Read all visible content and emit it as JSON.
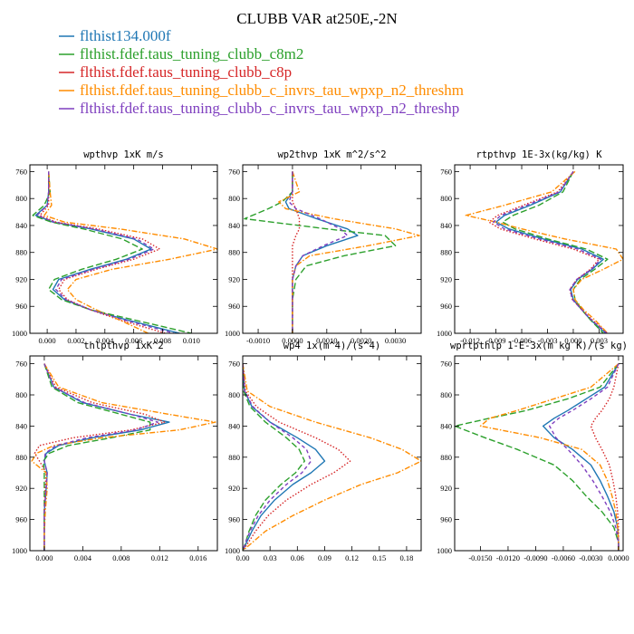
{
  "figure": {
    "title": "CLUBB VAR at250E,-2N",
    "legend": [
      {
        "label": "flthist134.000f",
        "color": "#1f77b4",
        "dash": "solid"
      },
      {
        "label": "flthist.fdef.taus_tuning_clubb_c8m2",
        "color": "#2ca02c",
        "dash": "longdash"
      },
      {
        "label": "flthist.fdef.taus_tuning_clubb_c8p",
        "color": "#d62728",
        "dash": "dotted"
      },
      {
        "label": "flthist.fdef.taus_tuning_clubb_c_invrs_tau_wpxp_n2_threshm",
        "color": "#ff8c00",
        "dash": "dashdot"
      },
      {
        "label": "flthist.fdef.taus_tuning_clubb_c_invrs_tau_wpxp_n2_threshp",
        "color": "#7f3fbf",
        "dash": "dash"
      }
    ]
  },
  "chart_data": [
    {
      "type": "line",
      "title": "wpthvp  1xK m/s",
      "xlim": [
        -0.0012,
        0.0118
      ],
      "ylim": [
        1000,
        750
      ],
      "xticks": [
        0.0,
        0.002,
        0.004,
        0.006,
        0.008,
        0.01
      ],
      "xtick_labels": [
        "0.000",
        "0.002",
        "0.004",
        "0.006",
        "0.008",
        "0.010"
      ],
      "yticks": [
        760,
        800,
        840,
        880,
        920,
        960,
        1000
      ],
      "y": [
        760,
        790,
        810,
        825,
        835,
        845,
        860,
        875,
        890,
        905,
        920,
        935,
        950,
        965,
        980,
        1000
      ],
      "series": [
        {
          "x": [
            0.0001,
            0.0001,
            0.0,
            -0.0008,
            0.0004,
            0.003,
            0.006,
            0.0072,
            0.0055,
            0.003,
            0.0008,
            0.0004,
            0.0012,
            0.003,
            0.0055,
            0.0092
          ]
        },
        {
          "x": [
            0.0001,
            0.0002,
            -0.0002,
            -0.001,
            0.0003,
            0.0025,
            0.0052,
            0.0066,
            0.0048,
            0.0024,
            0.0005,
            0.0001,
            0.001,
            0.003,
            0.006,
            0.01
          ]
        },
        {
          "x": [
            0.0001,
            0.0001,
            0.0001,
            -0.0005,
            0.0006,
            0.0035,
            0.0066,
            0.0078,
            0.006,
            0.0034,
            0.0012,
            0.0008,
            0.0014,
            0.003,
            0.005,
            0.0082
          ]
        },
        {
          "x": [
            0.0001,
            0.0002,
            0.0003,
            -0.0002,
            0.0012,
            0.005,
            0.0095,
            0.0118,
            0.0085,
            0.0045,
            0.002,
            0.0014,
            0.002,
            0.0034,
            0.005,
            0.007
          ]
        },
        {
          "x": [
            0.0001,
            0.0001,
            0.0,
            -0.0007,
            0.0005,
            0.0032,
            0.0062,
            0.0074,
            0.0057,
            0.0032,
            0.001,
            0.0006,
            0.0013,
            0.003,
            0.0053,
            0.0088
          ]
        }
      ]
    },
    {
      "type": "line",
      "title": "wp2thvp  1xK m^2/s^2",
      "xlim": [
        -0.00145,
        0.00375
      ],
      "ylim": [
        1000,
        750
      ],
      "xticks": [
        -0.001,
        0.0,
        0.001,
        0.002,
        0.003
      ],
      "xtick_labels": [
        "-0.0010",
        "0.0000",
        "0.0010",
        "0.0020",
        "0.0030"
      ],
      "yticks": [
        760,
        800,
        840,
        880,
        920,
        960,
        1000
      ],
      "y": [
        760,
        790,
        805,
        815,
        830,
        845,
        855,
        870,
        885,
        900,
        920,
        950,
        980,
        1000
      ],
      "series": [
        {
          "x": [
            0.0,
            0.0,
            -0.0002,
            -0.0001,
            0.0007,
            0.0016,
            0.0019,
            0.001,
            0.0003,
            0.0001,
            0.0,
            0.0,
            0.0,
            0.0
          ]
        },
        {
          "x": [
            0.0,
            0.0,
            -0.0003,
            -0.0007,
            -0.0014,
            0.001,
            0.0027,
            0.003,
            0.0015,
            0.0004,
            0.0001,
            0.0,
            0.0,
            0.0
          ]
        },
        {
          "x": [
            0.0,
            0.0,
            0.0,
            0.0001,
            0.0002,
            0.0002,
            0.0001,
            0.0,
            0.0,
            0.0,
            0.0,
            0.0,
            0.0,
            0.0
          ]
        },
        {
          "x": [
            0.0,
            0.0002,
            -0.0004,
            -0.0002,
            0.0012,
            0.003,
            0.0037,
            0.0022,
            0.0005,
            0.0001,
            0.0,
            0.0,
            0.0,
            0.0
          ]
        },
        {
          "x": [
            0.0,
            0.0,
            -0.0001,
            0.0001,
            0.0008,
            0.0014,
            0.0016,
            0.0009,
            0.0003,
            0.0001,
            0.0,
            0.0,
            0.0,
            0.0
          ]
        }
      ]
    },
    {
      "type": "line",
      "title": "rtpthvp  1E-3x(kg/kg) K",
      "xlim": [
        -0.0138,
        0.0058
      ],
      "ylim": [
        1000,
        750
      ],
      "xticks": [
        -0.012,
        -0.009,
        -0.006,
        -0.003,
        0.0,
        0.003
      ],
      "xtick_labels": [
        "-0.012",
        "-0.009",
        "-0.006",
        "-0.003",
        "0.000",
        "0.003"
      ],
      "yticks": [
        760,
        800,
        840,
        880,
        920,
        960,
        1000
      ],
      "y": [
        760,
        790,
        810,
        825,
        835,
        845,
        860,
        875,
        890,
        905,
        920,
        935,
        950,
        965,
        980,
        1000
      ],
      "series": [
        {
          "x": [
            0.0,
            -0.0015,
            -0.005,
            -0.008,
            -0.009,
            -0.0075,
            -0.0035,
            0.001,
            0.0035,
            0.0022,
            0.0005,
            -0.0003,
            0.0,
            0.001,
            0.002,
            0.0038
          ]
        },
        {
          "x": [
            0.0,
            -0.0012,
            -0.004,
            -0.007,
            -0.0082,
            -0.0068,
            -0.003,
            0.0015,
            0.004,
            0.0025,
            0.0008,
            0.0,
            0.0002,
            0.001,
            0.002,
            0.0035
          ]
        },
        {
          "x": [
            0.0,
            -0.0018,
            -0.0058,
            -0.0088,
            -0.0098,
            -0.0085,
            -0.0045,
            0.0,
            0.003,
            0.002,
            0.0004,
            -0.0004,
            -0.0001,
            0.001,
            0.0022,
            0.004
          ]
        },
        {
          "x": [
            0.0002,
            -0.0025,
            -0.008,
            -0.0125,
            -0.009,
            -0.006,
            -0.001,
            0.005,
            0.0058,
            0.0035,
            0.001,
            0.0,
            0.0002,
            0.0012,
            0.0025,
            0.004
          ]
        },
        {
          "x": [
            0.0,
            -0.0016,
            -0.0054,
            -0.0084,
            -0.0093,
            -0.008,
            -0.004,
            0.0005,
            0.0032,
            0.0021,
            0.0004,
            -0.0004,
            -0.0001,
            0.001,
            0.0021,
            0.0039
          ]
        }
      ]
    },
    {
      "type": "line",
      "title": "thlpthvp  1xK^2",
      "xlim": [
        -0.0015,
        0.018
      ],
      "ylim": [
        1000,
        750
      ],
      "xticks": [
        0.0,
        0.004,
        0.008,
        0.012,
        0.016
      ],
      "xtick_labels": [
        "0.000",
        "0.004",
        "0.008",
        "0.012",
        "0.016"
      ],
      "yticks": [
        760,
        800,
        840,
        880,
        920,
        960,
        1000
      ],
      "y": [
        760,
        790,
        810,
        825,
        835,
        845,
        855,
        865,
        875,
        885,
        900,
        920,
        950,
        980,
        1000
      ],
      "series": [
        {
          "x": [
            0.0,
            0.001,
            0.004,
            0.009,
            0.013,
            0.01,
            0.005,
            0.0015,
            0.0002,
            0.0,
            0.0003,
            0.0002,
            0.0,
            0.0,
            0.0
          ]
        },
        {
          "x": [
            0.0,
            0.0008,
            0.0035,
            0.008,
            0.011,
            0.011,
            0.007,
            0.0025,
            0.0005,
            -0.0001,
            0.0,
            0.0,
            0.0,
            0.0,
            0.0
          ]
        },
        {
          "x": [
            0.0,
            0.0012,
            0.005,
            0.0105,
            0.0125,
            0.009,
            0.003,
            -0.0005,
            -0.001,
            -0.0005,
            0.0002,
            0.0001,
            0.0,
            0.0,
            0.0
          ]
        },
        {
          "x": [
            0.0,
            0.0015,
            0.006,
            0.013,
            0.0178,
            0.014,
            0.006,
            0.001,
            -0.0008,
            -0.0013,
            0.0002,
            0.0003,
            0.0001,
            0.0,
            0.0
          ]
        },
        {
          "x": [
            0.0,
            0.001,
            0.0042,
            0.009,
            0.0118,
            0.0095,
            0.0045,
            0.0012,
            0.0001,
            0.0,
            0.0003,
            0.0002,
            0.0,
            0.0,
            0.0
          ]
        }
      ]
    },
    {
      "type": "line",
      "title": "wp4  1x(m^4)/(s^4)",
      "xlim": [
        0,
        0.196
      ],
      "ylim": [
        1000,
        750
      ],
      "xticks": [
        0.0,
        0.03,
        0.06,
        0.09,
        0.12,
        0.15,
        0.18
      ],
      "xtick_labels": [
        "0.00",
        "0.03",
        "0.06",
        "0.09",
        "0.12",
        "0.15",
        "0.18"
      ],
      "yticks": [
        760,
        800,
        840,
        880,
        920,
        960,
        1000
      ],
      "y": [
        760,
        795,
        815,
        835,
        855,
        870,
        885,
        900,
        915,
        935,
        955,
        975,
        990,
        1000
      ],
      "series": [
        {
          "x": [
            0.0,
            0.002,
            0.01,
            0.03,
            0.06,
            0.08,
            0.09,
            0.075,
            0.055,
            0.035,
            0.02,
            0.01,
            0.004,
            0.0
          ]
        },
        {
          "x": [
            0.0,
            0.001,
            0.008,
            0.025,
            0.048,
            0.062,
            0.068,
            0.058,
            0.042,
            0.025,
            0.014,
            0.007,
            0.003,
            0.0
          ]
        },
        {
          "x": [
            0.0,
            0.003,
            0.015,
            0.04,
            0.08,
            0.105,
            0.118,
            0.1,
            0.075,
            0.048,
            0.028,
            0.014,
            0.006,
            0.0
          ]
        },
        {
          "x": [
            0.0,
            0.005,
            0.03,
            0.08,
            0.14,
            0.175,
            0.196,
            0.17,
            0.13,
            0.09,
            0.055,
            0.025,
            0.01,
            0.0
          ]
        },
        {
          "x": [
            0.0,
            0.002,
            0.011,
            0.03,
            0.055,
            0.07,
            0.075,
            0.065,
            0.048,
            0.03,
            0.017,
            0.008,
            0.003,
            0.0
          ]
        }
      ]
    },
    {
      "type": "line",
      "title": "wprtpthlp  1-E-3x(m kg K)/(s kg)",
      "xlim": [
        -0.0178,
        0.0005
      ],
      "ylim": [
        1000,
        750
      ],
      "xticks": [
        -0.015,
        -0.012,
        -0.009,
        -0.006,
        -0.003,
        0.0
      ],
      "xtick_labels": [
        "-0.0150",
        "-0.0120",
        "-0.0090",
        "-0.0060",
        "-0.0030",
        "0.0000"
      ],
      "yticks": [
        760,
        800,
        840,
        880,
        920,
        960,
        1000
      ],
      "y": [
        760,
        790,
        805,
        820,
        830,
        840,
        855,
        870,
        890,
        910,
        930,
        950,
        970,
        990,
        1000
      ],
      "series": [
        {
          "x": [
            0.0,
            -0.0015,
            -0.0035,
            -0.0055,
            -0.007,
            -0.0082,
            -0.007,
            -0.005,
            -0.003,
            -0.002,
            -0.0012,
            -0.0005,
            -0.0001,
            0.0,
            0.0
          ]
        },
        {
          "x": [
            0.0,
            -0.002,
            -0.0055,
            -0.01,
            -0.014,
            -0.0178,
            -0.0145,
            -0.011,
            -0.007,
            -0.005,
            -0.0035,
            -0.0018,
            -0.0005,
            0.0,
            0.0
          ]
        },
        {
          "x": [
            0.0,
            -0.0005,
            -0.001,
            -0.0018,
            -0.0025,
            -0.003,
            -0.0025,
            -0.0018,
            -0.001,
            -0.0006,
            -0.0003,
            -0.0001,
            0.0,
            0.0,
            0.0
          ]
        },
        {
          "x": [
            0.0,
            -0.003,
            -0.007,
            -0.011,
            -0.014,
            -0.015,
            -0.0085,
            -0.004,
            -0.002,
            -0.0012,
            -0.0007,
            -0.0003,
            -0.0001,
            0.0,
            0.0
          ]
        },
        {
          "x": [
            0.0,
            -0.0012,
            -0.003,
            -0.005,
            -0.0065,
            -0.0075,
            -0.0068,
            -0.0055,
            -0.004,
            -0.0028,
            -0.0018,
            -0.0009,
            -0.0003,
            0.0,
            0.0
          ]
        }
      ]
    }
  ]
}
